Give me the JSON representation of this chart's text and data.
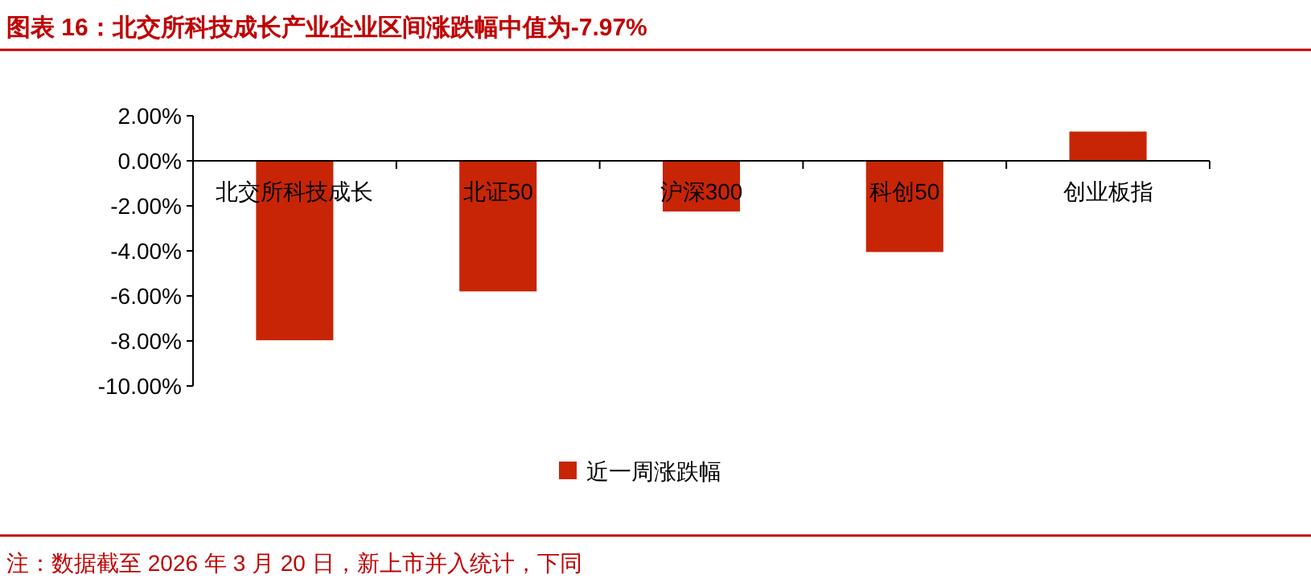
{
  "chart_data": {
    "type": "bar",
    "title": "图表 16：北交所科技成长产业企业区间涨跌幅中值为-7.97%",
    "categories": [
      "北交所科技成长",
      "北证50",
      "沪深300",
      "科创50",
      "创业板指"
    ],
    "series": [
      {
        "name": "近一周涨跌幅",
        "color": "#c82506",
        "values": [
          -7.97,
          -5.8,
          -2.25,
          -4.05,
          1.3
        ]
      }
    ],
    "ylim": [
      -10,
      2
    ],
    "yticks": [
      {
        "value": 2,
        "label": "2.00%"
      },
      {
        "value": 0,
        "label": "0.00%"
      },
      {
        "value": -2,
        "label": "-2.00%"
      },
      {
        "value": -4,
        "label": "-4.00%"
      },
      {
        "value": -6,
        "label": "-6.00%"
      },
      {
        "value": -8,
        "label": "-8.00%"
      },
      {
        "value": -10,
        "label": "-10.00%"
      }
    ],
    "grid": false,
    "legend": "bottom",
    "annotations": [
      "注：数据截至 2026 年 3 月 20 日，新上市并入统计，下同"
    ]
  }
}
